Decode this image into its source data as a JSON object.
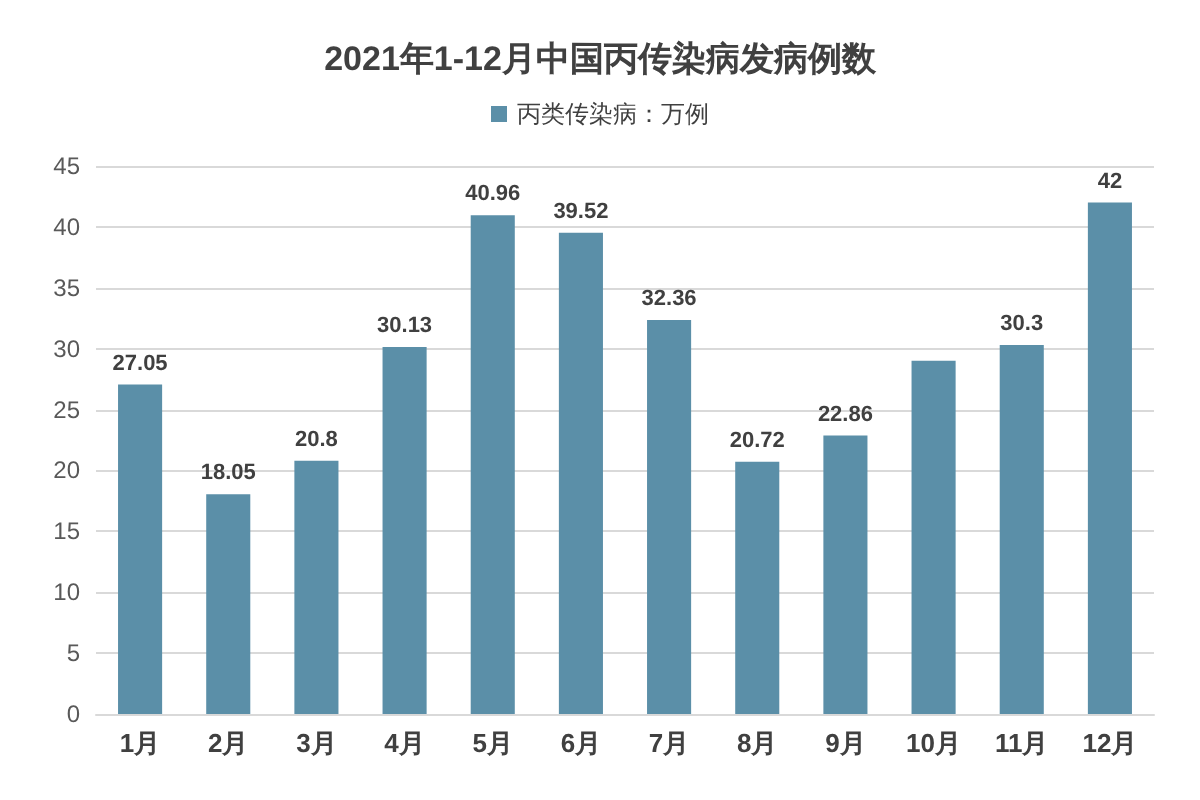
{
  "chart_data": {
    "type": "bar",
    "title": "2021年1-12月中国丙传染病发病例数",
    "categories": [
      "1月",
      "2月",
      "3月",
      "4月",
      "5月",
      "6月",
      "7月",
      "8月",
      "9月",
      "10月",
      "11月",
      "12月"
    ],
    "series": [
      {
        "name": "丙类传染病：万例",
        "color": "#5b8fa8",
        "values": [
          27.05,
          18.05,
          20.8,
          30.13,
          40.96,
          39.52,
          32.36,
          20.72,
          22.86,
          29,
          30.3,
          42
        ],
        "value_labels": [
          "27.05",
          "18.05",
          "20.8",
          "30.13",
          "40.96",
          "39.52",
          "32.36",
          "20.72",
          "22.86",
          null,
          "30.3",
          "42"
        ]
      }
    ],
    "ylim": [
      0,
      45
    ],
    "yticks": [
      0,
      5,
      10,
      15,
      20,
      25,
      30,
      35,
      40,
      45
    ],
    "grid": "y",
    "legend": "top"
  }
}
